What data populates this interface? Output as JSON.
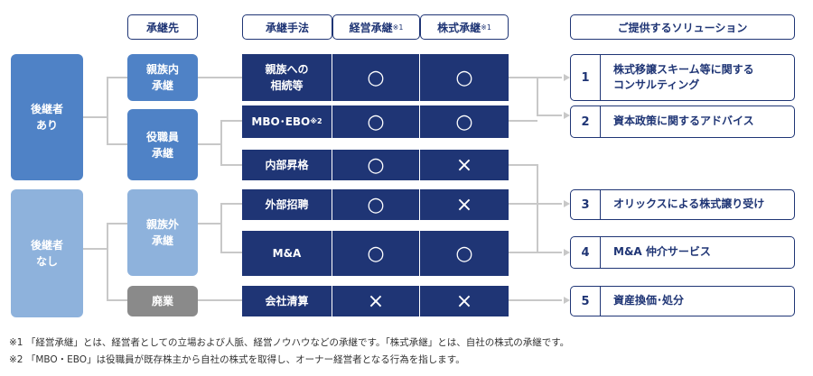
{
  "headers": {
    "successor": "承継先",
    "method": "承継手法",
    "mgmt": "経営承継",
    "mgmt_note": "※1",
    "stock": "株式承継",
    "stock_note": "※1",
    "solutions": "ご提供するソリューション"
  },
  "left": {
    "with_successor": "後継者\nあり",
    "no_successor": "後継者\nなし"
  },
  "successors": {
    "family": "親族内\n承継",
    "employee": "役職員\n承継",
    "outside": "親族外\n承継",
    "closure": "廃業"
  },
  "methods": [
    {
      "label": "親族への\n相続等",
      "note": "",
      "mgmt": "○",
      "stock": "○"
    },
    {
      "label": "MBO･EBO",
      "note": "※2",
      "mgmt": "○",
      "stock": "○"
    },
    {
      "label": "内部昇格",
      "note": "",
      "mgmt": "○",
      "stock": "×"
    },
    {
      "label": "外部招聘",
      "note": "",
      "mgmt": "○",
      "stock": "×"
    },
    {
      "label": "M&A",
      "note": "",
      "mgmt": "○",
      "stock": "○"
    },
    {
      "label": "会社清算",
      "note": "",
      "mgmt": "×",
      "stock": "×"
    }
  ],
  "solutions": [
    {
      "num": "1",
      "text": "株式移譲スキーム等に関する\nコンサルティング"
    },
    {
      "num": "2",
      "text": "資本政策に関するアドバイス"
    },
    {
      "num": "3",
      "text": "オリックスによる株式譲り受け"
    },
    {
      "num": "4",
      "text": "M&A 仲介サービス"
    },
    {
      "num": "5",
      "text": "資産換価･処分"
    }
  ],
  "notes": [
    "※1 「経営承継」とは、経営者としての立場および人脈、経営ノウハウなどの承継です。「株式承継」とは、自社の株式の承継です。",
    "※2 「MBO・EBO」は役職員が既存株主から自社の株式を取得し、オーナー経営者となる行為を指します。"
  ],
  "colors": {
    "navy": "#1f3575",
    "blue": "#4f82c6",
    "light_blue": "#8eb2dc",
    "grey": "#8a8a8a",
    "connector": "#c8c8c8"
  }
}
